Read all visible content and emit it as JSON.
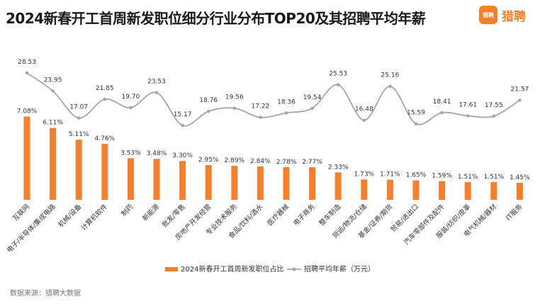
{
  "title": "2024新春开工首周新发职位细分行业分布TOP20及其招聘平均年薪",
  "brand": {
    "logo_badge": "猎聘",
    "logo_text": "猎聘",
    "color": "#f47f2c"
  },
  "source": "数据来源：猎聘大数据",
  "chart_data": {
    "type": "bar",
    "categories": [
      "互联网",
      "电子/半导体/集成电路",
      "机械/设备",
      "计算机软件",
      "制药",
      "新能源",
      "批发/零售",
      "房地产开发经营",
      "专业技术服务",
      "食品/饮料/酒水",
      "医疗器械",
      "电子商务",
      "整车制造",
      "货运/物流/仓储",
      "基金/证券/期货",
      "贸易/进出口",
      "汽车零部件及配件",
      "服装/纺织/皮革",
      "电气机械/器材",
      "IT服务"
    ],
    "series": [
      {
        "name": "2024新春开工首周新发职位占比",
        "type": "bar",
        "color": "#f47f2c",
        "values": [
          7.08,
          6.11,
          5.11,
          4.76,
          3.53,
          3.48,
          3.3,
          2.95,
          2.89,
          2.84,
          2.78,
          2.77,
          2.33,
          1.73,
          1.71,
          1.65,
          1.59,
          1.51,
          1.51,
          1.45
        ],
        "labels": [
          "7.08%",
          "6.11%",
          "5.11%",
          "4.76%",
          "3.53%",
          "3.48%",
          "3.30%",
          "2.95%",
          "2.89%",
          "2.84%",
          "2.78%",
          "2.77%",
          "2.33%",
          "1.73%",
          "1.71%",
          "1.65%",
          "1.59%",
          "1.51%",
          "1.51%",
          "1.45%"
        ]
      },
      {
        "name": "招聘平均年薪（万元）",
        "type": "line",
        "color": "#a6a6a6",
        "values": [
          28.53,
          23.95,
          17.07,
          21.85,
          19.7,
          23.53,
          15.17,
          18.76,
          19.56,
          17.22,
          18.36,
          19.54,
          25.53,
          16.48,
          25.16,
          15.59,
          18.41,
          17.61,
          17.55,
          21.57
        ],
        "labels": [
          "28.53",
          "23.95",
          "17.07",
          "21.85",
          "19.70",
          "23.53",
          "15.17",
          "18.76",
          "19.56",
          "17.22",
          "18.36",
          "19.54",
          "25.53",
          "16.48",
          "25.16",
          "15.59",
          "18.41",
          "17.61",
          "17.55",
          "21.57"
        ]
      }
    ],
    "legend": "bottom",
    "grid": false
  }
}
